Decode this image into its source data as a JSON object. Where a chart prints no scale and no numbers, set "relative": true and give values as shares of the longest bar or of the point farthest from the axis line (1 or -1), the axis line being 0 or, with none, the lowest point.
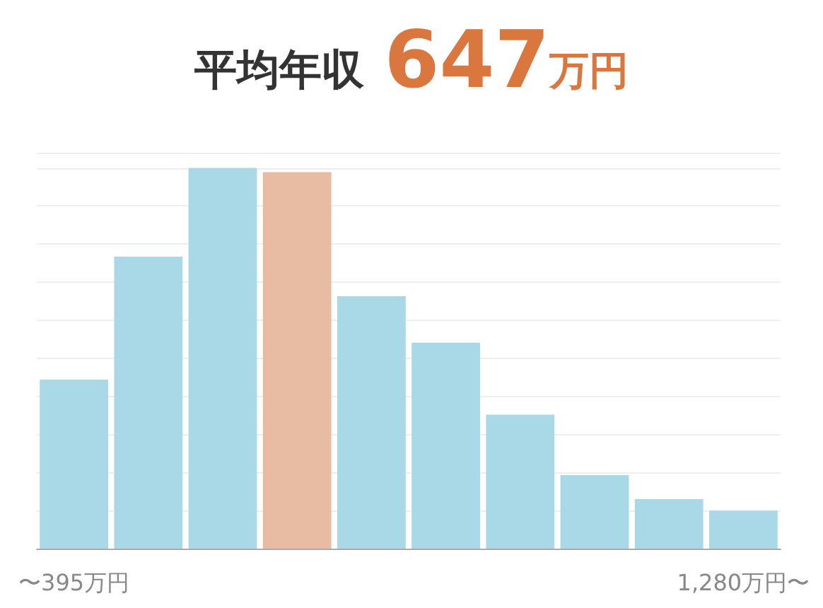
{
  "chart_data": {
    "type": "bar",
    "title": "平均年収 647万円",
    "relative": true,
    "grid": "y",
    "categories": [
      "〜395万円",
      null,
      null,
      null,
      null,
      null,
      null,
      null,
      null,
      "1,280万円〜"
    ],
    "values": [
      0.444,
      0.767,
      1,
      0.989,
      0.663,
      0.541,
      0.352,
      0.193,
      0.13,
      0.1
    ],
    "colors": [
      "#a9d8e6",
      "#a9d8e6",
      "#a9d8e6",
      "#e8bba3",
      "#a9d8e6",
      "#a9d8e6",
      "#a9d8e6",
      "#a9d8e6",
      "#a9d8e6",
      "#a9d8e6"
    ]
  }
}
